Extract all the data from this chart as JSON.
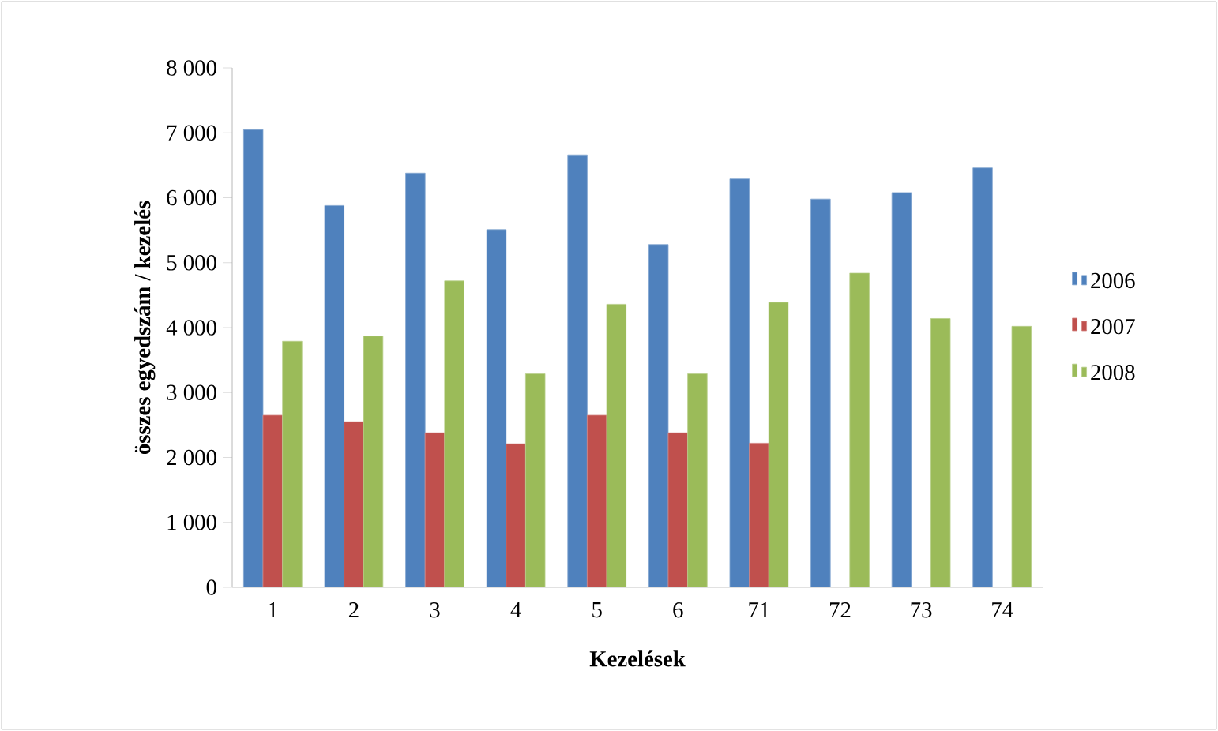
{
  "chart_data": {
    "type": "bar",
    "xlabel": "Kezelések",
    "ylabel": "összes egyedszám / kezelés",
    "categories": [
      "1",
      "2",
      "3",
      "4",
      "5",
      "6",
      "71",
      "72",
      "73",
      "74"
    ],
    "series": [
      {
        "name": "2006",
        "color": "#4f81bd",
        "values": [
          7050,
          5880,
          6380,
          5510,
          6660,
          5280,
          6290,
          5980,
          6080,
          6460
        ]
      },
      {
        "name": "2007",
        "color": "#c0504d",
        "values": [
          2650,
          2550,
          2380,
          2210,
          2650,
          2380,
          2220,
          null,
          null,
          null
        ]
      },
      {
        "name": "2008",
        "color": "#9bbb59",
        "values": [
          3790,
          3870,
          4720,
          3290,
          4360,
          3290,
          4390,
          4840,
          4140,
          4020
        ]
      }
    ],
    "ylim": [
      0,
      8000
    ],
    "yticks": [
      {
        "value": 0,
        "label": "0"
      },
      {
        "value": 1000,
        "label": "1 000"
      },
      {
        "value": 2000,
        "label": "2 000"
      },
      {
        "value": 3000,
        "label": "3 000"
      },
      {
        "value": 4000,
        "label": "4 000"
      },
      {
        "value": 5000,
        "label": "5 000"
      },
      {
        "value": 6000,
        "label": "6 000"
      },
      {
        "value": 7000,
        "label": "7 000"
      },
      {
        "value": 8000,
        "label": "8 000"
      }
    ],
    "grid": false,
    "legend": "right"
  }
}
